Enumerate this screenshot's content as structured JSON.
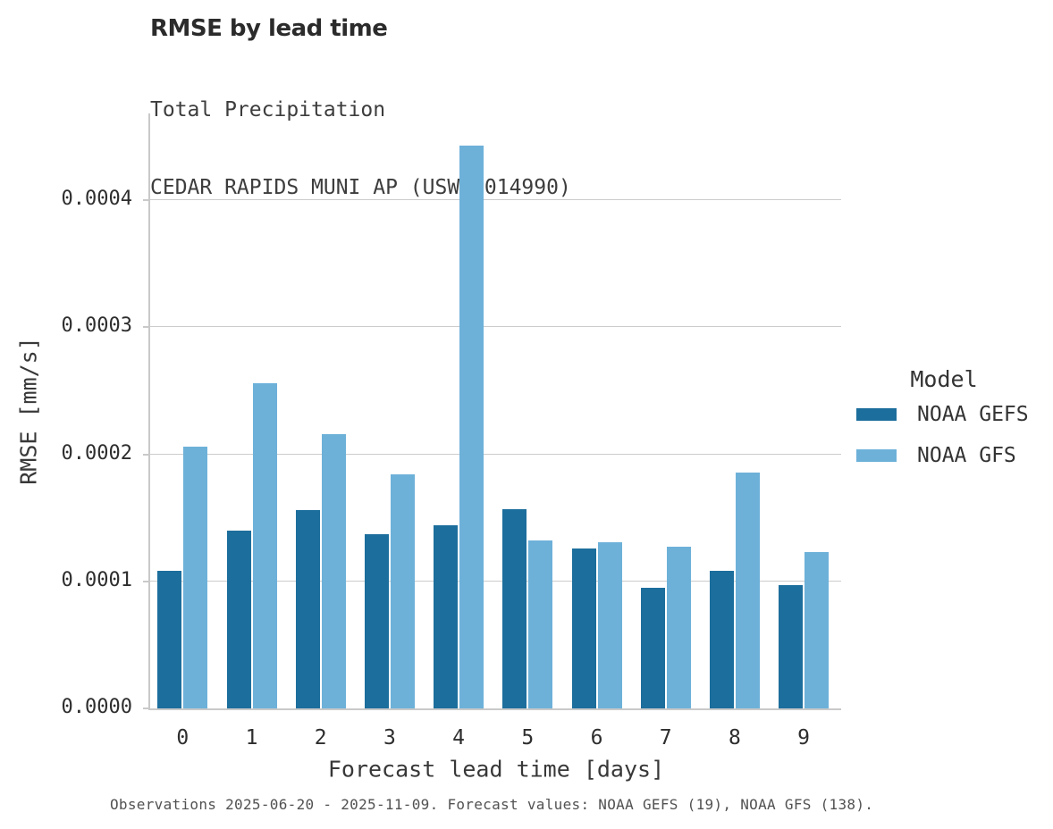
{
  "title": "RMSE by lead time",
  "subtitle_line1": "Total Precipitation",
  "subtitle_line2": "CEDAR RAPIDS MUNI AP (USW00014990)",
  "caption": "Observations 2025-06-20 - 2025-11-09. Forecast values: NOAA GEFS (19), NOAA GFS (138).",
  "legend": {
    "title": "Model",
    "entries": [
      {
        "label": "NOAA GEFS",
        "color": "#1c6e9c"
      },
      {
        "label": "NOAA GFS",
        "color": "#6db1d9"
      }
    ]
  },
  "colors": {
    "gefs": "#1c6e9c",
    "gfs": "#6db1d9",
    "gridline": "#cccccc",
    "spine": "#c9c9c9",
    "text_dark": "#2b2b2b",
    "text_gray": "#3d3d3d"
  },
  "chart_data": {
    "type": "bar",
    "title": "RMSE by lead time",
    "subtitle": [
      "Total Precipitation",
      "CEDAR RAPIDS MUNI AP (USW00014990)"
    ],
    "xlabel": "Forecast lead time [days]",
    "ylabel": "RMSE [mm/s]",
    "categories": [
      "0",
      "1",
      "2",
      "3",
      "4",
      "5",
      "6",
      "7",
      "8",
      "9"
    ],
    "series": [
      {
        "name": "NOAA GEFS",
        "color": "#1c6e9c",
        "values": [
          0.000108,
          0.00014,
          0.000156,
          0.000137,
          0.000144,
          0.000157,
          0.000126,
          9.5e-05,
          0.000108,
          9.7e-05
        ]
      },
      {
        "name": "NOAA GFS",
        "color": "#6db1d9",
        "values": [
          0.000206,
          0.000256,
          0.000216,
          0.000184,
          0.000443,
          0.000132,
          0.000131,
          0.000127,
          0.000186,
          0.000123
        ]
      }
    ],
    "ylim": [
      0,
      0.000468
    ],
    "yticks": [
      0.0,
      0.0001,
      0.0002,
      0.0003,
      0.0004
    ],
    "ytick_labels": [
      "0.0000",
      "0.0001",
      "0.0002",
      "0.0003",
      "0.0004"
    ],
    "grid": "horizontal",
    "legend_title": "Model",
    "legend_position": "center-right"
  }
}
